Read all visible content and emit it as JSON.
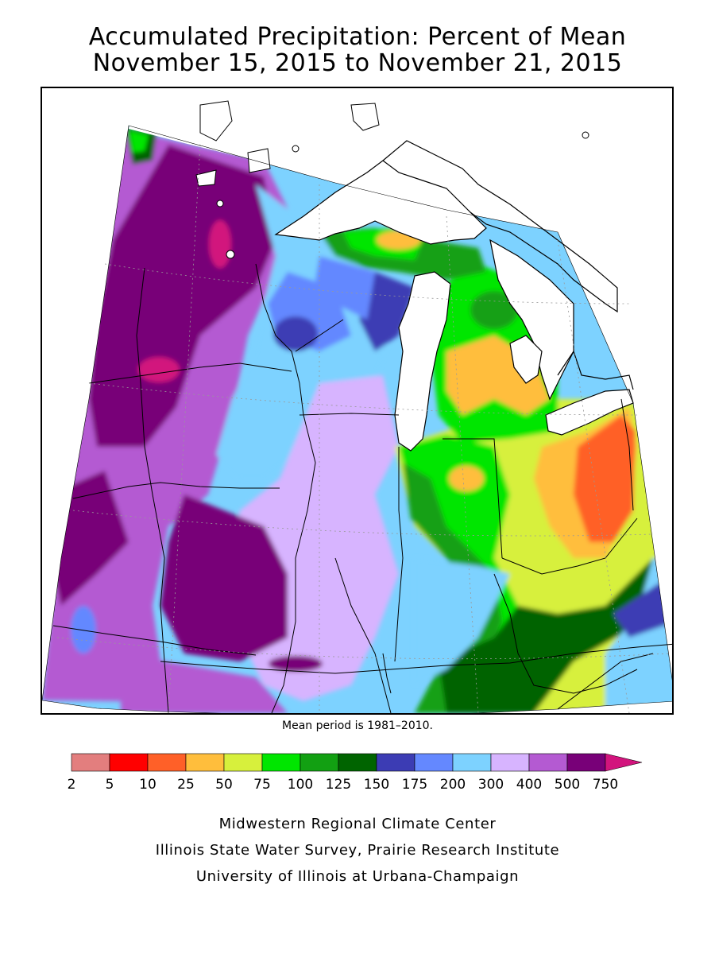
{
  "title": {
    "line1": "Accumulated Precipitation: Percent of Mean",
    "line2": "November 15, 2015 to November 21, 2015"
  },
  "map": {
    "region": "Midwest",
    "lake_color": "#ffffff",
    "boundary_color": "#000000"
  },
  "mean_period_note": "Mean period is 1981–2010.",
  "legend": {
    "ticks": [
      "2",
      "5",
      "10",
      "25",
      "50",
      "75",
      "100",
      "125",
      "150",
      "175",
      "200",
      "300",
      "400",
      "500",
      "750"
    ],
    "colors": [
      "#e37e7e",
      "#ff0000",
      "#ff6028",
      "#ffbe3c",
      "#d7f03c",
      "#00e600",
      "#12a012",
      "#006400",
      "#3c3cb4",
      "#6488ff",
      "#7dd2ff",
      "#d7b4ff",
      "#b45ad2",
      "#780078",
      "#d2147d"
    ],
    "overflow_arrow": true
  },
  "credits": {
    "line1": "Midwestern Regional Climate Center",
    "line2": "Illinois State Water Survey, Prairie Research Institute",
    "line3": "University of Illinois at Urbana-Champaign"
  }
}
